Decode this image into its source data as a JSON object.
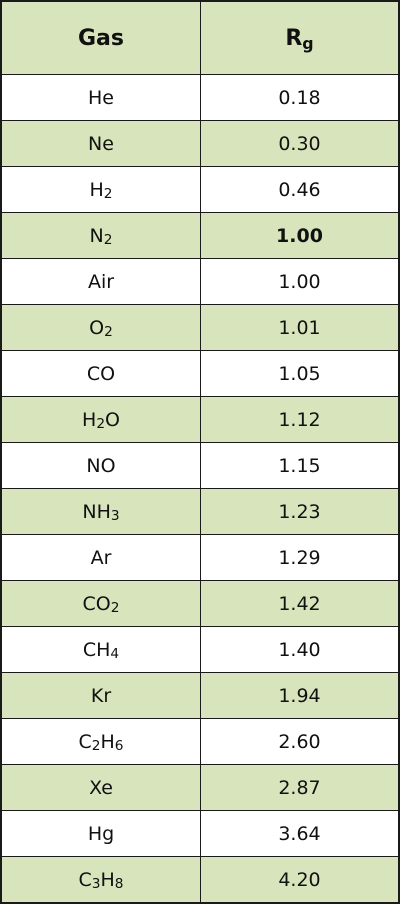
{
  "header": {
    "gas": "Gas",
    "rg_main": "R",
    "rg_sub": "g"
  },
  "rows": [
    {
      "gas": [
        {
          "t": "He"
        }
      ],
      "value": "0.18"
    },
    {
      "gas": [
        {
          "t": "Ne"
        }
      ],
      "value": "0.30"
    },
    {
      "gas": [
        {
          "t": "H"
        },
        {
          "t": "2",
          "sub": true
        }
      ],
      "value": "0.46"
    },
    {
      "gas": [
        {
          "t": "N"
        },
        {
          "t": "2",
          "sub": true
        }
      ],
      "value": "1.00",
      "bold": true
    },
    {
      "gas": [
        {
          "t": "Air"
        }
      ],
      "value": "1.00"
    },
    {
      "gas": [
        {
          "t": "O"
        },
        {
          "t": "2",
          "sub": true
        }
      ],
      "value": "1.01"
    },
    {
      "gas": [
        {
          "t": "CO"
        }
      ],
      "value": "1.05"
    },
    {
      "gas": [
        {
          "t": "H"
        },
        {
          "t": "2",
          "sub": true
        },
        {
          "t": "O"
        }
      ],
      "value": "1.12"
    },
    {
      "gas": [
        {
          "t": "NO"
        }
      ],
      "value": "1.15"
    },
    {
      "gas": [
        {
          "t": "NH"
        },
        {
          "t": "3",
          "sub": true
        }
      ],
      "value": "1.23"
    },
    {
      "gas": [
        {
          "t": "Ar"
        }
      ],
      "value": "1.29"
    },
    {
      "gas": [
        {
          "t": "CO"
        },
        {
          "t": "2",
          "sub": true
        }
      ],
      "value": "1.42"
    },
    {
      "gas": [
        {
          "t": "CH"
        },
        {
          "t": "4",
          "sub": true
        }
      ],
      "value": "1.40"
    },
    {
      "gas": [
        {
          "t": "Kr"
        }
      ],
      "value": "1.94"
    },
    {
      "gas": [
        {
          "t": "C"
        },
        {
          "t": "2",
          "sub": true
        },
        {
          "t": "H"
        },
        {
          "t": "6",
          "sub": true
        }
      ],
      "value": "2.60"
    },
    {
      "gas": [
        {
          "t": "Xe"
        }
      ],
      "value": "2.87"
    },
    {
      "gas": [
        {
          "t": "Hg"
        }
      ],
      "value": "3.64"
    },
    {
      "gas": [
        {
          "t": "C"
        },
        {
          "t": "3",
          "sub": true
        },
        {
          "t": "H"
        },
        {
          "t": "8",
          "sub": true
        }
      ],
      "value": "4.20"
    }
  ],
  "colors": {
    "shade": "#d8e5bc",
    "border": "#1a1a1a",
    "white": "#ffffff"
  }
}
